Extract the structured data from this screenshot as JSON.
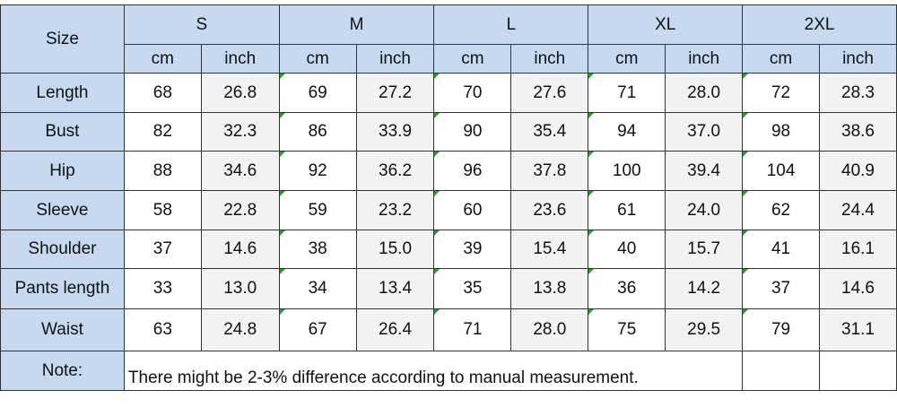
{
  "table": {
    "corner": "Size",
    "sizes": [
      {
        "name": "S",
        "units": [
          "cm",
          "inch"
        ]
      },
      {
        "name": "M",
        "units": [
          "cm",
          "inch"
        ]
      },
      {
        "name": "L",
        "units": [
          "cm",
          "inch"
        ]
      },
      {
        "name": "XL",
        "units": [
          "cm",
          "inch"
        ]
      },
      {
        "name": "2XL",
        "units": [
          "cm",
          "inch"
        ]
      }
    ],
    "rows": [
      {
        "label": "Length",
        "values": [
          "68",
          "26.8",
          "69",
          "27.2",
          "70",
          "27.6",
          "71",
          "28.0",
          "72",
          "28.3"
        ]
      },
      {
        "label": "Bust",
        "values": [
          "82",
          "32.3",
          "86",
          "33.9",
          "90",
          "35.4",
          "94",
          "37.0",
          "98",
          "38.6"
        ]
      },
      {
        "label": "Hip",
        "values": [
          "88",
          "34.6",
          "92",
          "36.2",
          "96",
          "37.8",
          "100",
          "39.4",
          "104",
          "40.9"
        ]
      },
      {
        "label": "Sleeve",
        "values": [
          "58",
          "22.8",
          "59",
          "23.2",
          "60",
          "23.6",
          "61",
          "24.0",
          "62",
          "24.4"
        ]
      },
      {
        "label": "Shoulder",
        "values": [
          "37",
          "14.6",
          "38",
          "15.0",
          "39",
          "15.4",
          "40",
          "15.7",
          "41",
          "16.1"
        ]
      },
      {
        "label": "Pants length",
        "values": [
          "33",
          "13.0",
          "34",
          "13.4",
          "35",
          "13.8",
          "36",
          "14.2",
          "37",
          "14.6"
        ]
      },
      {
        "label": "Waist",
        "values": [
          "63",
          "24.8",
          "67",
          "26.4",
          "71",
          "28.0",
          "75",
          "29.5",
          "79",
          "31.1"
        ]
      }
    ],
    "note": {
      "label": "Note:",
      "text": "There might be 2-3% difference according to manual measurement."
    }
  }
}
